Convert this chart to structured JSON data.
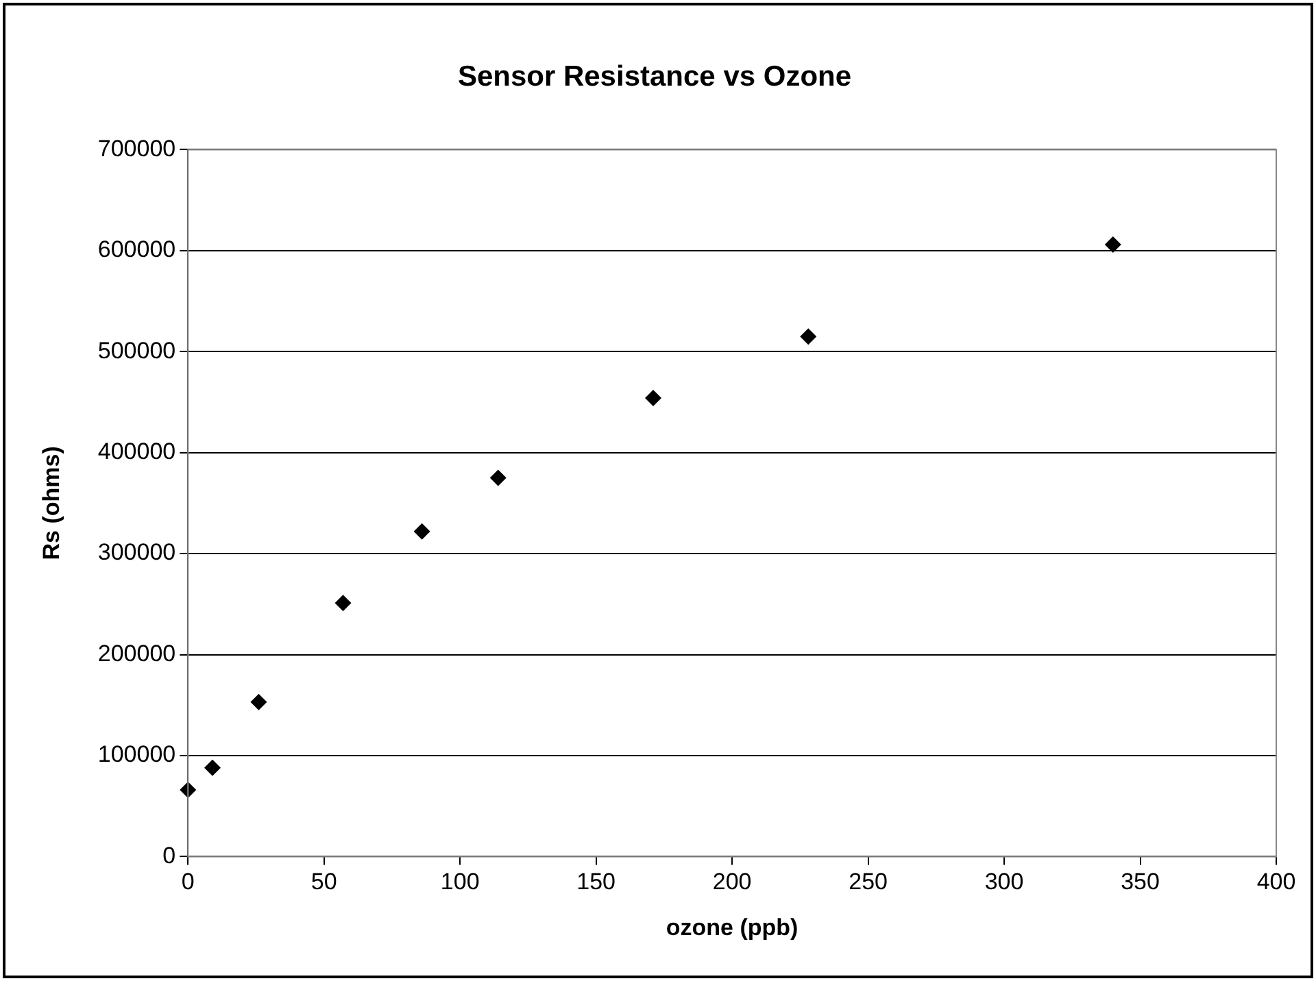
{
  "chart_data": {
    "type": "scatter",
    "title": "Sensor Resistance vs Ozone",
    "xlabel": "ozone (ppb)",
    "ylabel": "Rs (ohms)",
    "x": [
      0,
      9,
      26,
      57,
      86,
      114,
      171,
      228,
      340
    ],
    "series": [
      {
        "color": "#000000",
        "values": [
          66000,
          88000,
          153000,
          251000,
          322000,
          375000,
          454000,
          515000,
          606000
        ]
      }
    ],
    "xlim": [
      0,
      400
    ],
    "xticks": [
      0,
      50,
      100,
      150,
      200,
      250,
      300,
      350,
      400
    ],
    "ylim": [
      0,
      700000
    ],
    "yticks": [
      0,
      100000,
      200000,
      300000,
      400000,
      500000,
      600000,
      700000
    ],
    "grid": "y",
    "legend": false,
    "marker": "diamond"
  }
}
